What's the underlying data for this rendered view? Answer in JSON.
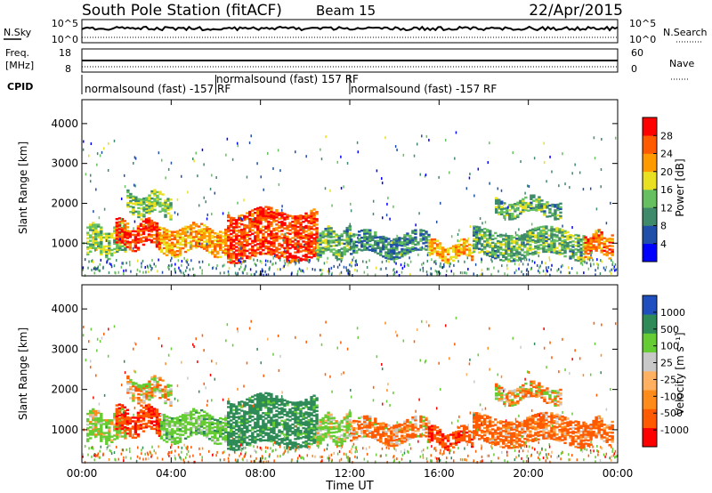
{
  "header": {
    "station": "South Pole Station (fitACF)",
    "beam": "Beam 15",
    "date": "22/Apr/2015"
  },
  "noise_panel": {
    "left_label": "N.Sky",
    "right_label": "N.Search",
    "left_ticks": [
      "10^5",
      "10^0"
    ],
    "right_ticks": [
      "10^5",
      "10^0"
    ]
  },
  "freq_panel": {
    "left_label_line1": "Freq.",
    "left_label_line2": "[MHz]",
    "right_label": "Nave",
    "left_ticks": [
      "18",
      "8"
    ],
    "right_ticks": [
      "60",
      "0"
    ]
  },
  "cpid": {
    "label": "CPID",
    "segments": [
      {
        "name": "normalsound (fast) -157 RF",
        "start_hour": 0.0,
        "end_hour": 6.0
      },
      {
        "name": "normalsound (fast) 157 RF",
        "start_hour": 6.0,
        "end_hour": 12.0
      },
      {
        "name": "normalsound (fast) -157 RF",
        "start_hour": 12.0,
        "end_hour": 24.0
      }
    ]
  },
  "x_axis": {
    "label": "Time UT",
    "ticks": [
      "00:00",
      "04:00",
      "08:00",
      "12:00",
      "16:00",
      "20:00",
      "00:00"
    ]
  },
  "power_panel": {
    "ylabel": "Slant Range [km]",
    "yticks": [
      "4000",
      "3000",
      "2000",
      "1000"
    ],
    "colorbar_title": "Power [dB]",
    "colorbar_ticks": [
      "28",
      "24",
      "20",
      "16",
      "12",
      "8",
      "4"
    ]
  },
  "velocity_panel": {
    "ylabel": "Slant Range [km]",
    "yticks": [
      "4000",
      "3000",
      "2000",
      "1000"
    ],
    "colorbar_title": "Velocity [m s⁻¹]",
    "colorbar_ticks": [
      "1000",
      "500",
      "100",
      "25",
      "-25",
      "-100",
      "-500",
      "-1000"
    ]
  },
  "chart_data": {
    "type": "heatmap",
    "title": "South Pole Station (fitACF) Beam 15 22/Apr/2015",
    "xlabel": "Time UT",
    "ylabel": "Slant Range [km]",
    "xlim_hours": [
      0,
      24
    ],
    "ylim_km": [
      180,
      4600
    ],
    "power_scale_db": [
      0,
      30
    ],
    "velocity_scale_ms": [
      -1000,
      1000
    ],
    "power_colors": [
      "#0000ff",
      "#1f4fa8",
      "#3e8a6a",
      "#66c060",
      "#e8e020",
      "#ff9a00",
      "#ff5a00",
      "#ff0000"
    ],
    "velocity_colors": [
      "#ff0000",
      "#ff5a00",
      "#ff8c1a",
      "#ffb060",
      "#c8c8c8",
      "#66cc33",
      "#2e8b57",
      "#1f4fbf"
    ],
    "echo_regions": [
      {
        "t_start": 0.2,
        "t_end": 2.0,
        "r_min": 700,
        "r_max": 1400,
        "power_db": 14,
        "velocity_ms": 150
      },
      {
        "t_start": 1.5,
        "t_end": 3.5,
        "r_min": 900,
        "r_max": 1500,
        "power_db": 26,
        "velocity_ms": -450
      },
      {
        "t_start": 2.0,
        "t_end": 4.0,
        "r_min": 1700,
        "r_max": 2200,
        "power_db": 14,
        "velocity_ms": 0
      },
      {
        "t_start": 3.5,
        "t_end": 6.5,
        "r_min": 750,
        "r_max": 1400,
        "power_db": 20,
        "velocity_ms": 300
      },
      {
        "t_start": 6.5,
        "t_end": 10.5,
        "r_min": 600,
        "r_max": 1800,
        "power_db": 26,
        "velocity_ms": 700
      },
      {
        "t_start": 10.5,
        "t_end": 12.0,
        "r_min": 700,
        "r_max": 1300,
        "power_db": 12,
        "velocity_ms": 200
      },
      {
        "t_start": 12.0,
        "t_end": 15.5,
        "r_min": 700,
        "r_max": 1200,
        "power_db": 9,
        "velocity_ms": -120
      },
      {
        "t_start": 15.5,
        "t_end": 17.5,
        "r_min": 600,
        "r_max": 1000,
        "power_db": 20,
        "velocity_ms": -400
      },
      {
        "t_start": 17.5,
        "t_end": 22.5,
        "r_min": 650,
        "r_max": 1300,
        "power_db": 12,
        "velocity_ms": -200
      },
      {
        "t_start": 18.5,
        "t_end": 21.5,
        "r_min": 1700,
        "r_max": 2100,
        "power_db": 12,
        "velocity_ms": -30
      },
      {
        "t_start": 22.5,
        "t_end": 23.8,
        "r_min": 700,
        "r_max": 1200,
        "power_db": 22,
        "velocity_ms": -200
      }
    ]
  }
}
